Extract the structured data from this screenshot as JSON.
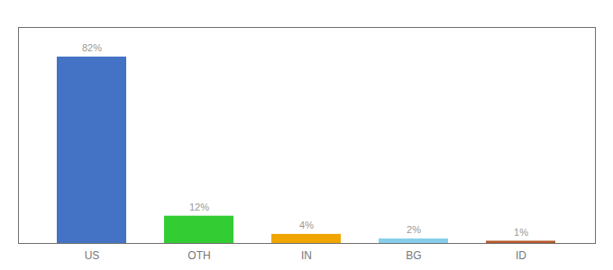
{
  "chart_data": {
    "type": "bar",
    "categories": [
      "US",
      "OTH",
      "IN",
      "BG",
      "ID"
    ],
    "values": [
      82,
      12,
      4,
      2,
      1
    ],
    "value_labels": [
      "82%",
      "12%",
      "4%",
      "2%",
      "1%"
    ],
    "colors": [
      "#4472c4",
      "#33cc33",
      "#f0a500",
      "#87ceeb",
      "#b5582c"
    ],
    "ylim": [
      0,
      95
    ],
    "data_labels": true,
    "tick_labels": "x",
    "grid": false
  }
}
